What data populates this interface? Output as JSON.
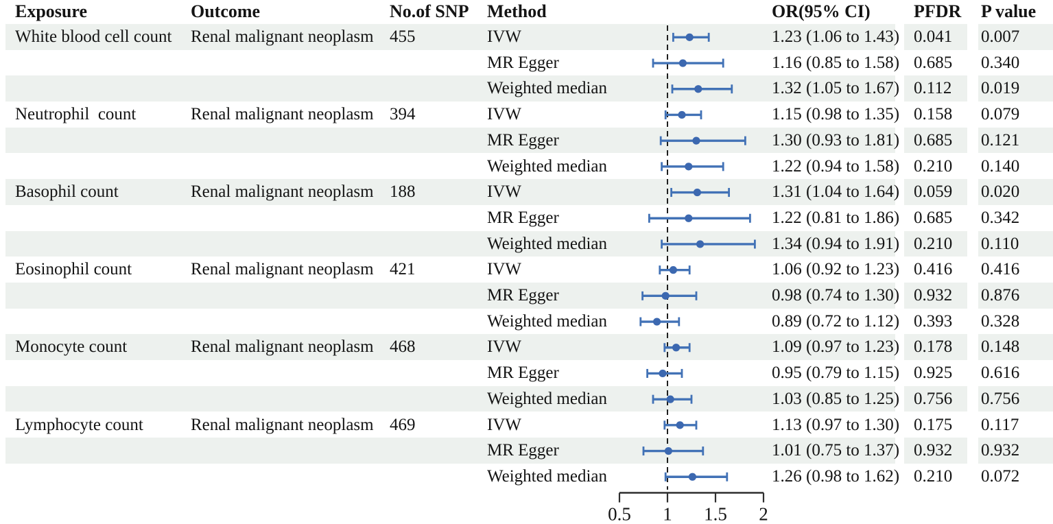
{
  "table": {
    "headers": {
      "exposure": "Exposure",
      "outcome": "Outcome",
      "snp": "No.of SNP",
      "method": "Method",
      "or_ci": "OR(95% CI)",
      "pfdr": "PFDR",
      "pvalue": "P value"
    },
    "rows": [
      {
        "exposure": "White blood cell count",
        "outcome": "Renal malignant neoplasm",
        "snp": "455",
        "method": "IVW",
        "or_ci": "1.23 (1.06 to 1.43)",
        "pfdr": "0.041",
        "pvalue": "0.007"
      },
      {
        "exposure": "",
        "outcome": "",
        "snp": "",
        "method": "MR Egger",
        "or_ci": "1.16 (0.85 to 1.58)",
        "pfdr": "0.685",
        "pvalue": "0.340"
      },
      {
        "exposure": "",
        "outcome": "",
        "snp": "",
        "method": "Weighted median",
        "or_ci": "1.32 (1.05 to 1.67)",
        "pfdr": "0.112",
        "pvalue": "0.019"
      },
      {
        "exposure": "Neutrophil  count",
        "outcome": "Renal malignant neoplasm",
        "snp": "394",
        "method": "IVW",
        "or_ci": "1.15 (0.98 to 1.35)",
        "pfdr": "0.158",
        "pvalue": "0.079"
      },
      {
        "exposure": "",
        "outcome": "",
        "snp": "",
        "method": "MR Egger",
        "or_ci": "1.30 (0.93 to 1.81)",
        "pfdr": "0.685",
        "pvalue": "0.121"
      },
      {
        "exposure": "",
        "outcome": "",
        "snp": "",
        "method": "Weighted median",
        "or_ci": "1.22 (0.94 to 1.58)",
        "pfdr": "0.210",
        "pvalue": "0.140"
      },
      {
        "exposure": "Basophil count",
        "outcome": "Renal malignant neoplasm",
        "snp": "188",
        "method": "IVW",
        "or_ci": "1.31 (1.04 to 1.64)",
        "pfdr": "0.059",
        "pvalue": "0.020"
      },
      {
        "exposure": "",
        "outcome": "",
        "snp": "",
        "method": "MR Egger",
        "or_ci": "1.22 (0.81 to 1.86)",
        "pfdr": "0.685",
        "pvalue": "0.342"
      },
      {
        "exposure": "",
        "outcome": "",
        "snp": "",
        "method": "Weighted median",
        "or_ci": "1.34 (0.94 to 1.91)",
        "pfdr": "0.210",
        "pvalue": "0.110"
      },
      {
        "exposure": "Eosinophil count",
        "outcome": "Renal malignant neoplasm",
        "snp": "421",
        "method": "IVW",
        "or_ci": "1.06 (0.92 to 1.23)",
        "pfdr": "0.416",
        "pvalue": "0.416"
      },
      {
        "exposure": "",
        "outcome": "",
        "snp": "",
        "method": "MR Egger",
        "or_ci": "0.98 (0.74 to 1.30)",
        "pfdr": "0.932",
        "pvalue": "0.876"
      },
      {
        "exposure": "",
        "outcome": "",
        "snp": "",
        "method": "Weighted median",
        "or_ci": "0.89 (0.72 to 1.12)",
        "pfdr": "0.393",
        "pvalue": "0.328"
      },
      {
        "exposure": "Monocyte count",
        "outcome": "Renal malignant neoplasm",
        "snp": "468",
        "method": "IVW",
        "or_ci": "1.09 (0.97 to 1.23)",
        "pfdr": "0.178",
        "pvalue": "0.148"
      },
      {
        "exposure": "",
        "outcome": "",
        "snp": "",
        "method": "MR Egger",
        "or_ci": "0.95 (0.79 to 1.15)",
        "pfdr": "0.925",
        "pvalue": "0.616"
      },
      {
        "exposure": "",
        "outcome": "",
        "snp": "",
        "method": "Weighted median",
        "or_ci": "1.03 (0.85 to 1.25)",
        "pfdr": "0.756",
        "pvalue": "0.756"
      },
      {
        "exposure": "Lymphocyte count",
        "outcome": "Renal malignant neoplasm",
        "snp": "469",
        "method": "IVW",
        "or_ci": "1.13 (0.97 to 1.30)",
        "pfdr": "0.175",
        "pvalue": "0.117"
      },
      {
        "exposure": "",
        "outcome": "",
        "snp": "",
        "method": "MR Egger",
        "or_ci": "1.01 (0.75 to 1.37)",
        "pfdr": "0.932",
        "pvalue": "0.932"
      },
      {
        "exposure": "",
        "outcome": "",
        "snp": "",
        "method": "Weighted median",
        "or_ci": "1.26 (0.98 to 1.62)",
        "pfdr": "0.210",
        "pvalue": "0.072"
      }
    ]
  },
  "chart_data": {
    "type": "scatter",
    "subtype": "forest-plot",
    "title": "",
    "xlabel": "",
    "ylabel": "",
    "x_range": [
      0.5,
      2
    ],
    "x_ticks": [
      0.5,
      1,
      1.5,
      2
    ],
    "x_tick_labels": [
      "0.5",
      "1",
      "1.5",
      "2"
    ],
    "reference_line": 1,
    "grid": false,
    "legend": "none",
    "series": [
      {
        "exposure": "White blood cell count",
        "method": "IVW",
        "or": 1.23,
        "ci_low": 1.06,
        "ci_high": 1.43
      },
      {
        "exposure": "White blood cell count",
        "method": "MR Egger",
        "or": 1.16,
        "ci_low": 0.85,
        "ci_high": 1.58
      },
      {
        "exposure": "White blood cell count",
        "method": "Weighted median",
        "or": 1.32,
        "ci_low": 1.05,
        "ci_high": 1.67
      },
      {
        "exposure": "Neutrophil count",
        "method": "IVW",
        "or": 1.15,
        "ci_low": 0.98,
        "ci_high": 1.35
      },
      {
        "exposure": "Neutrophil count",
        "method": "MR Egger",
        "or": 1.3,
        "ci_low": 0.93,
        "ci_high": 1.81
      },
      {
        "exposure": "Neutrophil count",
        "method": "Weighted median",
        "or": 1.22,
        "ci_low": 0.94,
        "ci_high": 1.58
      },
      {
        "exposure": "Basophil count",
        "method": "IVW",
        "or": 1.31,
        "ci_low": 1.04,
        "ci_high": 1.64
      },
      {
        "exposure": "Basophil count",
        "method": "MR Egger",
        "or": 1.22,
        "ci_low": 0.81,
        "ci_high": 1.86
      },
      {
        "exposure": "Basophil count",
        "method": "Weighted median",
        "or": 1.34,
        "ci_low": 0.94,
        "ci_high": 1.91
      },
      {
        "exposure": "Eosinophil count",
        "method": "IVW",
        "or": 1.06,
        "ci_low": 0.92,
        "ci_high": 1.23
      },
      {
        "exposure": "Eosinophil count",
        "method": "MR Egger",
        "or": 0.98,
        "ci_low": 0.74,
        "ci_high": 1.3
      },
      {
        "exposure": "Eosinophil count",
        "method": "Weighted median",
        "or": 0.89,
        "ci_low": 0.72,
        "ci_high": 1.12
      },
      {
        "exposure": "Monocyte count",
        "method": "IVW",
        "or": 1.09,
        "ci_low": 0.97,
        "ci_high": 1.23
      },
      {
        "exposure": "Monocyte count",
        "method": "MR Egger",
        "or": 0.95,
        "ci_low": 0.79,
        "ci_high": 1.15
      },
      {
        "exposure": "Monocyte count",
        "method": "Weighted median",
        "or": 1.03,
        "ci_low": 0.85,
        "ci_high": 1.25
      },
      {
        "exposure": "Lymphocyte count",
        "method": "IVW",
        "or": 1.13,
        "ci_low": 0.97,
        "ci_high": 1.3
      },
      {
        "exposure": "Lymphocyte count",
        "method": "MR Egger",
        "or": 1.01,
        "ci_low": 0.75,
        "ci_high": 1.37
      },
      {
        "exposure": "Lymphocyte count",
        "method": "Weighted median",
        "or": 1.26,
        "ci_low": 0.98,
        "ci_high": 1.62
      }
    ],
    "colors": {
      "marker_blue": "#4272b6",
      "marker_point_blue": "#3c68b0",
      "axis_dark": "#2e2e2e",
      "stripe": "#edf1ee"
    }
  }
}
